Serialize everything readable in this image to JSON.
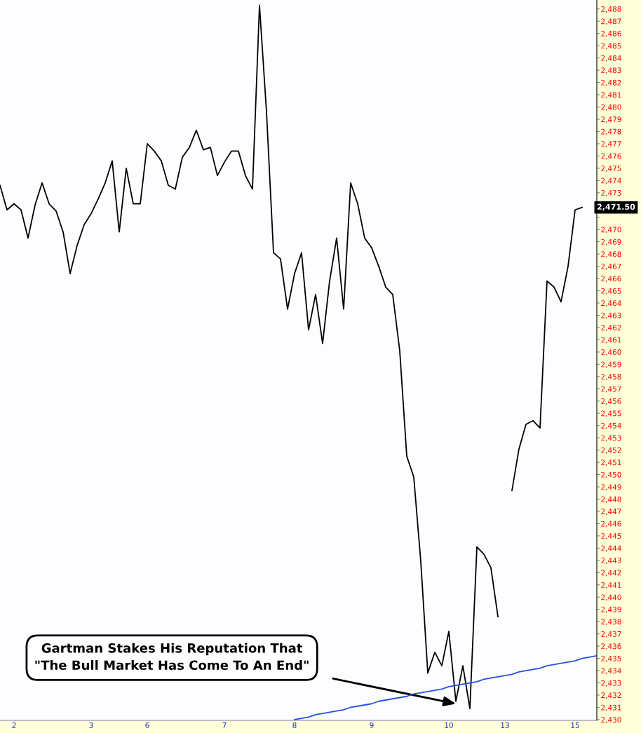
{
  "chart_data": {
    "type": "line",
    "categories": [
      null,
      null,
      "2",
      null,
      null,
      null,
      null,
      null,
      null,
      null,
      null,
      null,
      null,
      "3",
      null,
      null,
      null,
      null,
      null,
      null,
      null,
      "6",
      null,
      null,
      null,
      null,
      null,
      null,
      null,
      null,
      null,
      null,
      "7",
      null,
      null,
      null,
      null,
      null,
      null,
      null,
      null,
      null,
      "8",
      null,
      null,
      null,
      null,
      null,
      null,
      null,
      null,
      null,
      null,
      "9",
      null,
      null,
      null,
      null,
      null,
      null,
      null,
      null,
      null,
      null,
      "10",
      null,
      null,
      null,
      null,
      null,
      null,
      null,
      "13",
      null,
      null,
      null,
      null,
      null,
      null,
      null,
      null,
      null,
      "15",
      null,
      null,
      null
    ],
    "series": [
      {
        "color": "#000000",
        "values": [
          2473.6,
          2471.6,
          2472.1,
          2471.6,
          2469.3,
          2472.0,
          2473.8,
          2472.1,
          2471.5,
          2469.8,
          2466.4,
          2468.7,
          2470.4,
          2471.3,
          2472.5,
          2473.8,
          2475.6,
          2469.8,
          2475.0,
          2472.1,
          2472.1,
          2477.0,
          2476.4,
          2475.6,
          2473.6,
          2473.3,
          2475.9,
          2476.7,
          2478.1,
          2476.5,
          2476.7,
          2474.4,
          2475.5,
          2476.4,
          2476.4,
          2474.4,
          2473.3,
          2488.3,
          2479.6,
          2468.1,
          2467.6,
          2463.5,
          2466.4,
          2468.1,
          2461.8,
          2464.7,
          2460.7,
          2465.8,
          2469.3,
          2463.5,
          2473.8,
          2472.1,
          2469.3,
          2468.5,
          2467.0,
          2465.3,
          2464.7,
          2460.1,
          2451.5,
          2449.8,
          2442.9,
          2433.8,
          2435.5,
          2434.4,
          2437.2,
          2431.5,
          2434.4,
          2430.9,
          2444.1,
          2443.5,
          2442.4,
          2438.4,
          null,
          2448.7,
          2452.1,
          2454.1,
          2454.4,
          2453.8,
          2465.8,
          2465.3,
          2464.1,
          2467.0,
          2471.6,
          2471.8,
          null,
          null
        ]
      },
      {
        "color": "#2850e0",
        "values": [
          null,
          null,
          null,
          null,
          null,
          null,
          null,
          null,
          null,
          null,
          null,
          null,
          null,
          null,
          null,
          null,
          null,
          null,
          null,
          null,
          null,
          null,
          null,
          null,
          null,
          null,
          null,
          null,
          null,
          null,
          null,
          null,
          null,
          null,
          null,
          null,
          null,
          null,
          null,
          null,
          null,
          null,
          2430.0,
          2430.1,
          2430.2,
          2430.4,
          2430.5,
          2430.6,
          2430.7,
          2430.8,
          2431.0,
          2431.1,
          2431.2,
          2431.3,
          2431.5,
          2431.6,
          2431.7,
          2431.8,
          2431.9,
          2432.1,
          2432.2,
          2432.3,
          2432.4,
          2432.5,
          2432.7,
          2432.8,
          2432.9,
          2433.0,
          2433.1,
          2433.3,
          2433.4,
          2433.5,
          2433.6,
          2433.7,
          2433.9,
          2434.0,
          2434.1,
          2434.2,
          2434.4,
          2434.5,
          2434.6,
          2434.7,
          2434.8,
          2435.0,
          2435.1,
          2435.2
        ]
      }
    ],
    "ylim": [
      2429.94,
      2488.73
    ],
    "yticks": [
      {
        "value": 2430,
        "label": "2,430"
      },
      {
        "value": 2431,
        "label": "2,431"
      },
      {
        "value": 2432,
        "label": "2,432"
      },
      {
        "value": 2433,
        "label": "2,433"
      },
      {
        "value": 2434,
        "label": "2,434"
      },
      {
        "value": 2435,
        "label": "2,435"
      },
      {
        "value": 2436,
        "label": "2,436"
      },
      {
        "value": 2437,
        "label": "2,437"
      },
      {
        "value": 2438,
        "label": "2,438"
      },
      {
        "value": 2439,
        "label": "2,439"
      },
      {
        "value": 2440,
        "label": "2,440"
      },
      {
        "value": 2441,
        "label": "2,441"
      },
      {
        "value": 2442,
        "label": "2,442"
      },
      {
        "value": 2443,
        "label": "2,443"
      },
      {
        "value": 2444,
        "label": "2,444"
      },
      {
        "value": 2445,
        "label": "2,445"
      },
      {
        "value": 2446,
        "label": "2,446"
      },
      {
        "value": 2447,
        "label": "2,447"
      },
      {
        "value": 2448,
        "label": "2,448"
      },
      {
        "value": 2449,
        "label": "2,449"
      },
      {
        "value": 2450,
        "label": "2,450"
      },
      {
        "value": 2451,
        "label": "2,451"
      },
      {
        "value": 2452,
        "label": "2,452"
      },
      {
        "value": 2453,
        "label": "2,453"
      },
      {
        "value": 2454,
        "label": "2,454"
      },
      {
        "value": 2455,
        "label": "2,455"
      },
      {
        "value": 2456,
        "label": "2,456"
      },
      {
        "value": 2457,
        "label": "2,457"
      },
      {
        "value": 2458,
        "label": "2,458"
      },
      {
        "value": 2459,
        "label": "2,459"
      },
      {
        "value": 2460,
        "label": "2,460"
      },
      {
        "value": 2461,
        "label": "2,461"
      },
      {
        "value": 2462,
        "label": "2,462"
      },
      {
        "value": 2463,
        "label": "2,463"
      },
      {
        "value": 2464,
        "label": "2,464"
      },
      {
        "value": 2465,
        "label": "2,465"
      },
      {
        "value": 2466,
        "label": "2,466"
      },
      {
        "value": 2467,
        "label": "2,467"
      },
      {
        "value": 2468,
        "label": "2,468"
      },
      {
        "value": 2469,
        "label": "2,469"
      },
      {
        "value": 2470,
        "label": "2,470"
      },
      {
        "value": 2471,
        "label": null
      },
      {
        "value": 2472,
        "label": null
      },
      {
        "value": 2473,
        "label": "2,473"
      },
      {
        "value": 2474,
        "label": "2,474"
      },
      {
        "value": 2475,
        "label": "2,475"
      },
      {
        "value": 2476,
        "label": "2,476"
      },
      {
        "value": 2477,
        "label": "2,477"
      },
      {
        "value": 2478,
        "label": "2,478"
      },
      {
        "value": 2479,
        "label": "2,479"
      },
      {
        "value": 2480,
        "label": "2,480"
      },
      {
        "value": 2481,
        "label": "2,481"
      },
      {
        "value": 2482,
        "label": "2,482"
      },
      {
        "value": 2483,
        "label": "2,483"
      },
      {
        "value": 2484,
        "label": "2,484"
      },
      {
        "value": 2485,
        "label": "2,485"
      },
      {
        "value": 2486,
        "label": "2,486"
      },
      {
        "value": 2487,
        "label": "2,487"
      },
      {
        "value": 2488,
        "label": "2,488"
      }
    ],
    "annotations": [
      "Gartman Stakes His Reputation That\n\"The Bull Market Has Come To An End\"",
      "2,471.50"
    ]
  }
}
